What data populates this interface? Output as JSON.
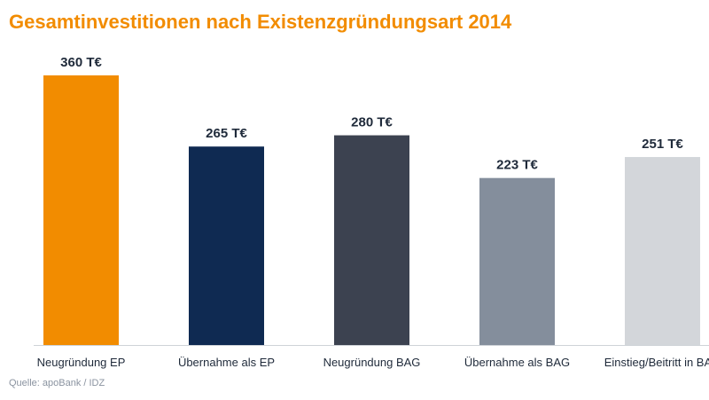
{
  "chart_data": {
    "type": "bar",
    "title": "Gesamtinvestitionen nach Existenzgründungsart 2014",
    "categories": [
      "Neugründung EP",
      "Übernahme als EP",
      "Neugründung BAG",
      "Übernahme als BAG",
      "Einstieg/Beitritt in BAG"
    ],
    "values": [
      360,
      265,
      280,
      223,
      251
    ],
    "value_labels": [
      "360 T€",
      "265 T€",
      "280 T€",
      "223 T€",
      "251 T€"
    ],
    "colors": [
      "#f28c00",
      "#0f2a52",
      "#3c4250",
      "#848e9c",
      "#d3d6da"
    ],
    "ylim": [
      0,
      360
    ],
    "grid": false,
    "legend": false,
    "xlabel": "",
    "ylabel": ""
  },
  "source": "Quelle: apoBank / IDZ"
}
